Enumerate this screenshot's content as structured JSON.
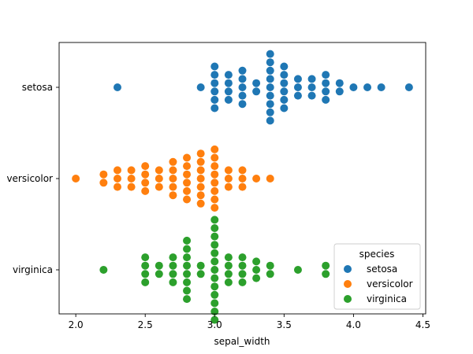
{
  "chart_data": {
    "type": "scatter",
    "subtype": "swarm",
    "title": "",
    "xlabel": "sepal_width",
    "ylabel": "",
    "xlim": [
      1.88,
      4.52
    ],
    "xticks": [
      "2.0",
      "2.5",
      "3.0",
      "3.5",
      "4.0",
      "4.5"
    ],
    "categories": [
      "setosa",
      "versicolor",
      "virginica"
    ],
    "legend": {
      "title": "species",
      "position": "lower-right"
    },
    "series": [
      {
        "name": "setosa",
        "color": "#1f77b4",
        "values": [
          2.3,
          2.9,
          3.0,
          3.0,
          3.0,
          3.0,
          3.0,
          3.0,
          3.1,
          3.1,
          3.1,
          3.1,
          3.2,
          3.2,
          3.2,
          3.2,
          3.2,
          3.3,
          3.3,
          3.4,
          3.4,
          3.4,
          3.4,
          3.4,
          3.4,
          3.4,
          3.4,
          3.4,
          3.5,
          3.5,
          3.5,
          3.5,
          3.5,
          3.5,
          3.6,
          3.6,
          3.7,
          3.7,
          3.7,
          3.8,
          3.8,
          3.8,
          3.8,
          3.9,
          3.9,
          4.0,
          4.1,
          4.2,
          4.4,
          3.6
        ]
      },
      {
        "name": "versicolor",
        "color": "#ff7f0e",
        "values": [
          2.0,
          2.2,
          2.2,
          2.3,
          2.3,
          2.3,
          2.4,
          2.4,
          2.4,
          2.5,
          2.5,
          2.5,
          2.5,
          2.6,
          2.6,
          2.6,
          2.7,
          2.7,
          2.7,
          2.7,
          2.7,
          2.8,
          2.8,
          2.8,
          2.8,
          2.8,
          2.8,
          2.9,
          2.9,
          2.9,
          2.9,
          2.9,
          2.9,
          2.9,
          3.0,
          3.0,
          3.0,
          3.0,
          3.0,
          3.0,
          3.0,
          3.0,
          3.1,
          3.1,
          3.1,
          3.2,
          3.2,
          3.2,
          3.3,
          3.4
        ]
      },
      {
        "name": "virginica",
        "color": "#2ca02c",
        "values": [
          2.2,
          2.5,
          2.5,
          2.5,
          2.5,
          2.6,
          2.6,
          2.7,
          2.7,
          2.7,
          2.7,
          2.8,
          2.8,
          2.8,
          2.8,
          2.8,
          2.8,
          2.8,
          2.8,
          2.9,
          2.9,
          3.0,
          3.0,
          3.0,
          3.0,
          3.0,
          3.0,
          3.0,
          3.0,
          3.0,
          3.0,
          3.0,
          3.0,
          3.1,
          3.1,
          3.1,
          3.1,
          3.2,
          3.2,
          3.2,
          3.2,
          3.3,
          3.3,
          3.3,
          3.4,
          3.4,
          3.6,
          3.8,
          3.8,
          3.0
        ]
      }
    ]
  }
}
